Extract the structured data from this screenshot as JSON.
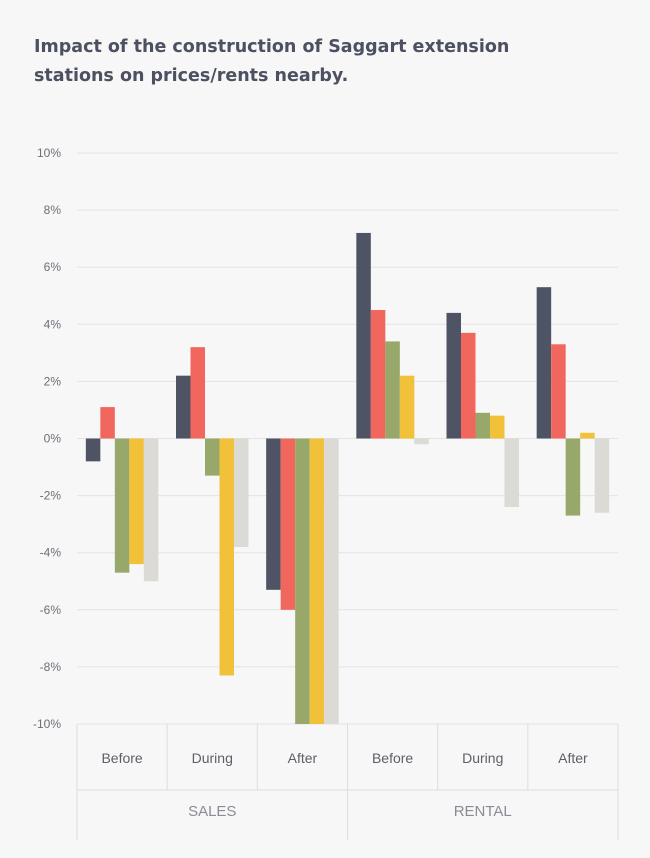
{
  "chart_data": {
    "type": "bar",
    "title": "Impact of the construction of Saggart extension stations on prices/rents nearby.",
    "xlabel": "",
    "ylabel": "",
    "ylim": [
      -10,
      10
    ],
    "y_ticks": [
      "10%",
      "8%",
      "6%",
      "4%",
      "2%",
      "0%",
      "-2%",
      "-4%",
      "-6%",
      "-8%",
      "-10%"
    ],
    "groups": [
      {
        "label": "SALES",
        "categories": [
          "Before",
          "During",
          "After"
        ]
      },
      {
        "label": "RENTAL",
        "categories": [
          "Before",
          "During",
          "After"
        ]
      }
    ],
    "categories": [
      "Before",
      "During",
      "After",
      "Before",
      "During",
      "After"
    ],
    "series": [
      {
        "color": "#4f5465",
        "values": [
          -0.8,
          2.2,
          -5.3,
          7.2,
          4.4,
          5.3
        ]
      },
      {
        "color": "#f1675d",
        "values": [
          1.1,
          3.2,
          -6.0,
          4.5,
          3.7,
          3.3
        ]
      },
      {
        "color": "#97a86a",
        "values": [
          -4.7,
          -1.3,
          -10.0,
          3.4,
          0.9,
          -2.7
        ]
      },
      {
        "color": "#f2c13a",
        "values": [
          -4.4,
          -8.3,
          -10.0,
          2.2,
          0.8,
          0.2
        ]
      },
      {
        "color": "#dcdad4",
        "values": [
          -5.0,
          -3.8,
          -10.0,
          -0.2,
          -2.4,
          -2.6
        ]
      }
    ],
    "grid": true,
    "legend": "none"
  }
}
